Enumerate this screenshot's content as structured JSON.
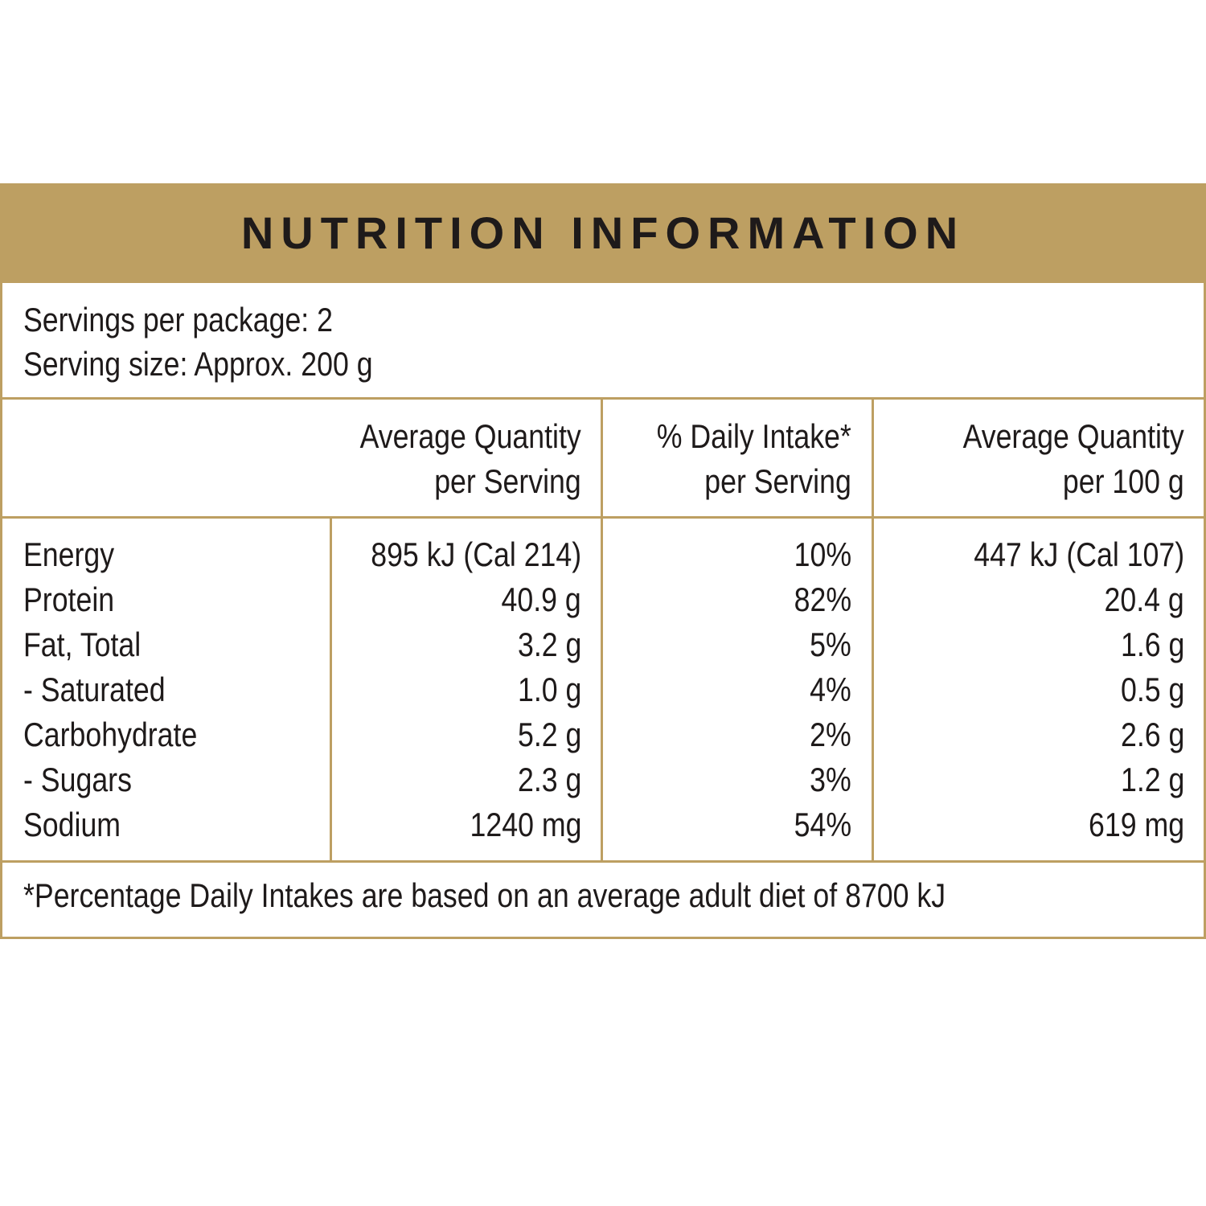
{
  "title": "NUTRITION INFORMATION",
  "servings_per_package": "Servings per package: 2",
  "serving_size": "Serving size: Approx. 200 g",
  "headers": {
    "per_serving_line1": "Average Quantity",
    "per_serving_line2": "per Serving",
    "daily_intake_line1": "% Daily Intake*",
    "daily_intake_line2": "per Serving",
    "per_100g_line1": "Average Quantity",
    "per_100g_line2": "per 100 g"
  },
  "rows": [
    {
      "name": "Energy",
      "per_serving": "895 kJ (Cal 214)",
      "daily_intake": "10%",
      "per_100g": "447 kJ (Cal 107)"
    },
    {
      "name": "Protein",
      "per_serving": "40.9 g",
      "daily_intake": "82%",
      "per_100g": "20.4 g"
    },
    {
      "name": "Fat, Total",
      "per_serving": "3.2 g",
      "daily_intake": "5%",
      "per_100g": "1.6 g"
    },
    {
      "name": "- Saturated",
      "per_serving": "1.0 g",
      "daily_intake": "4%",
      "per_100g": "0.5 g"
    },
    {
      "name": "Carbohydrate",
      "per_serving": "5.2 g",
      "daily_intake": "2%",
      "per_100g": "2.6 g"
    },
    {
      "name": "- Sugars",
      "per_serving": "2.3 g",
      "daily_intake": "3%",
      "per_100g": "1.2 g"
    },
    {
      "name": "Sodium",
      "per_serving": "1240 mg",
      "daily_intake": "54%",
      "per_100g": "619 mg"
    }
  ],
  "footnote": "*Percentage Daily Intakes are based on an average adult diet of 8700 kJ",
  "colors": {
    "accent": "#bd9f62",
    "text": "#1e1a1a",
    "background": "#ffffff"
  }
}
